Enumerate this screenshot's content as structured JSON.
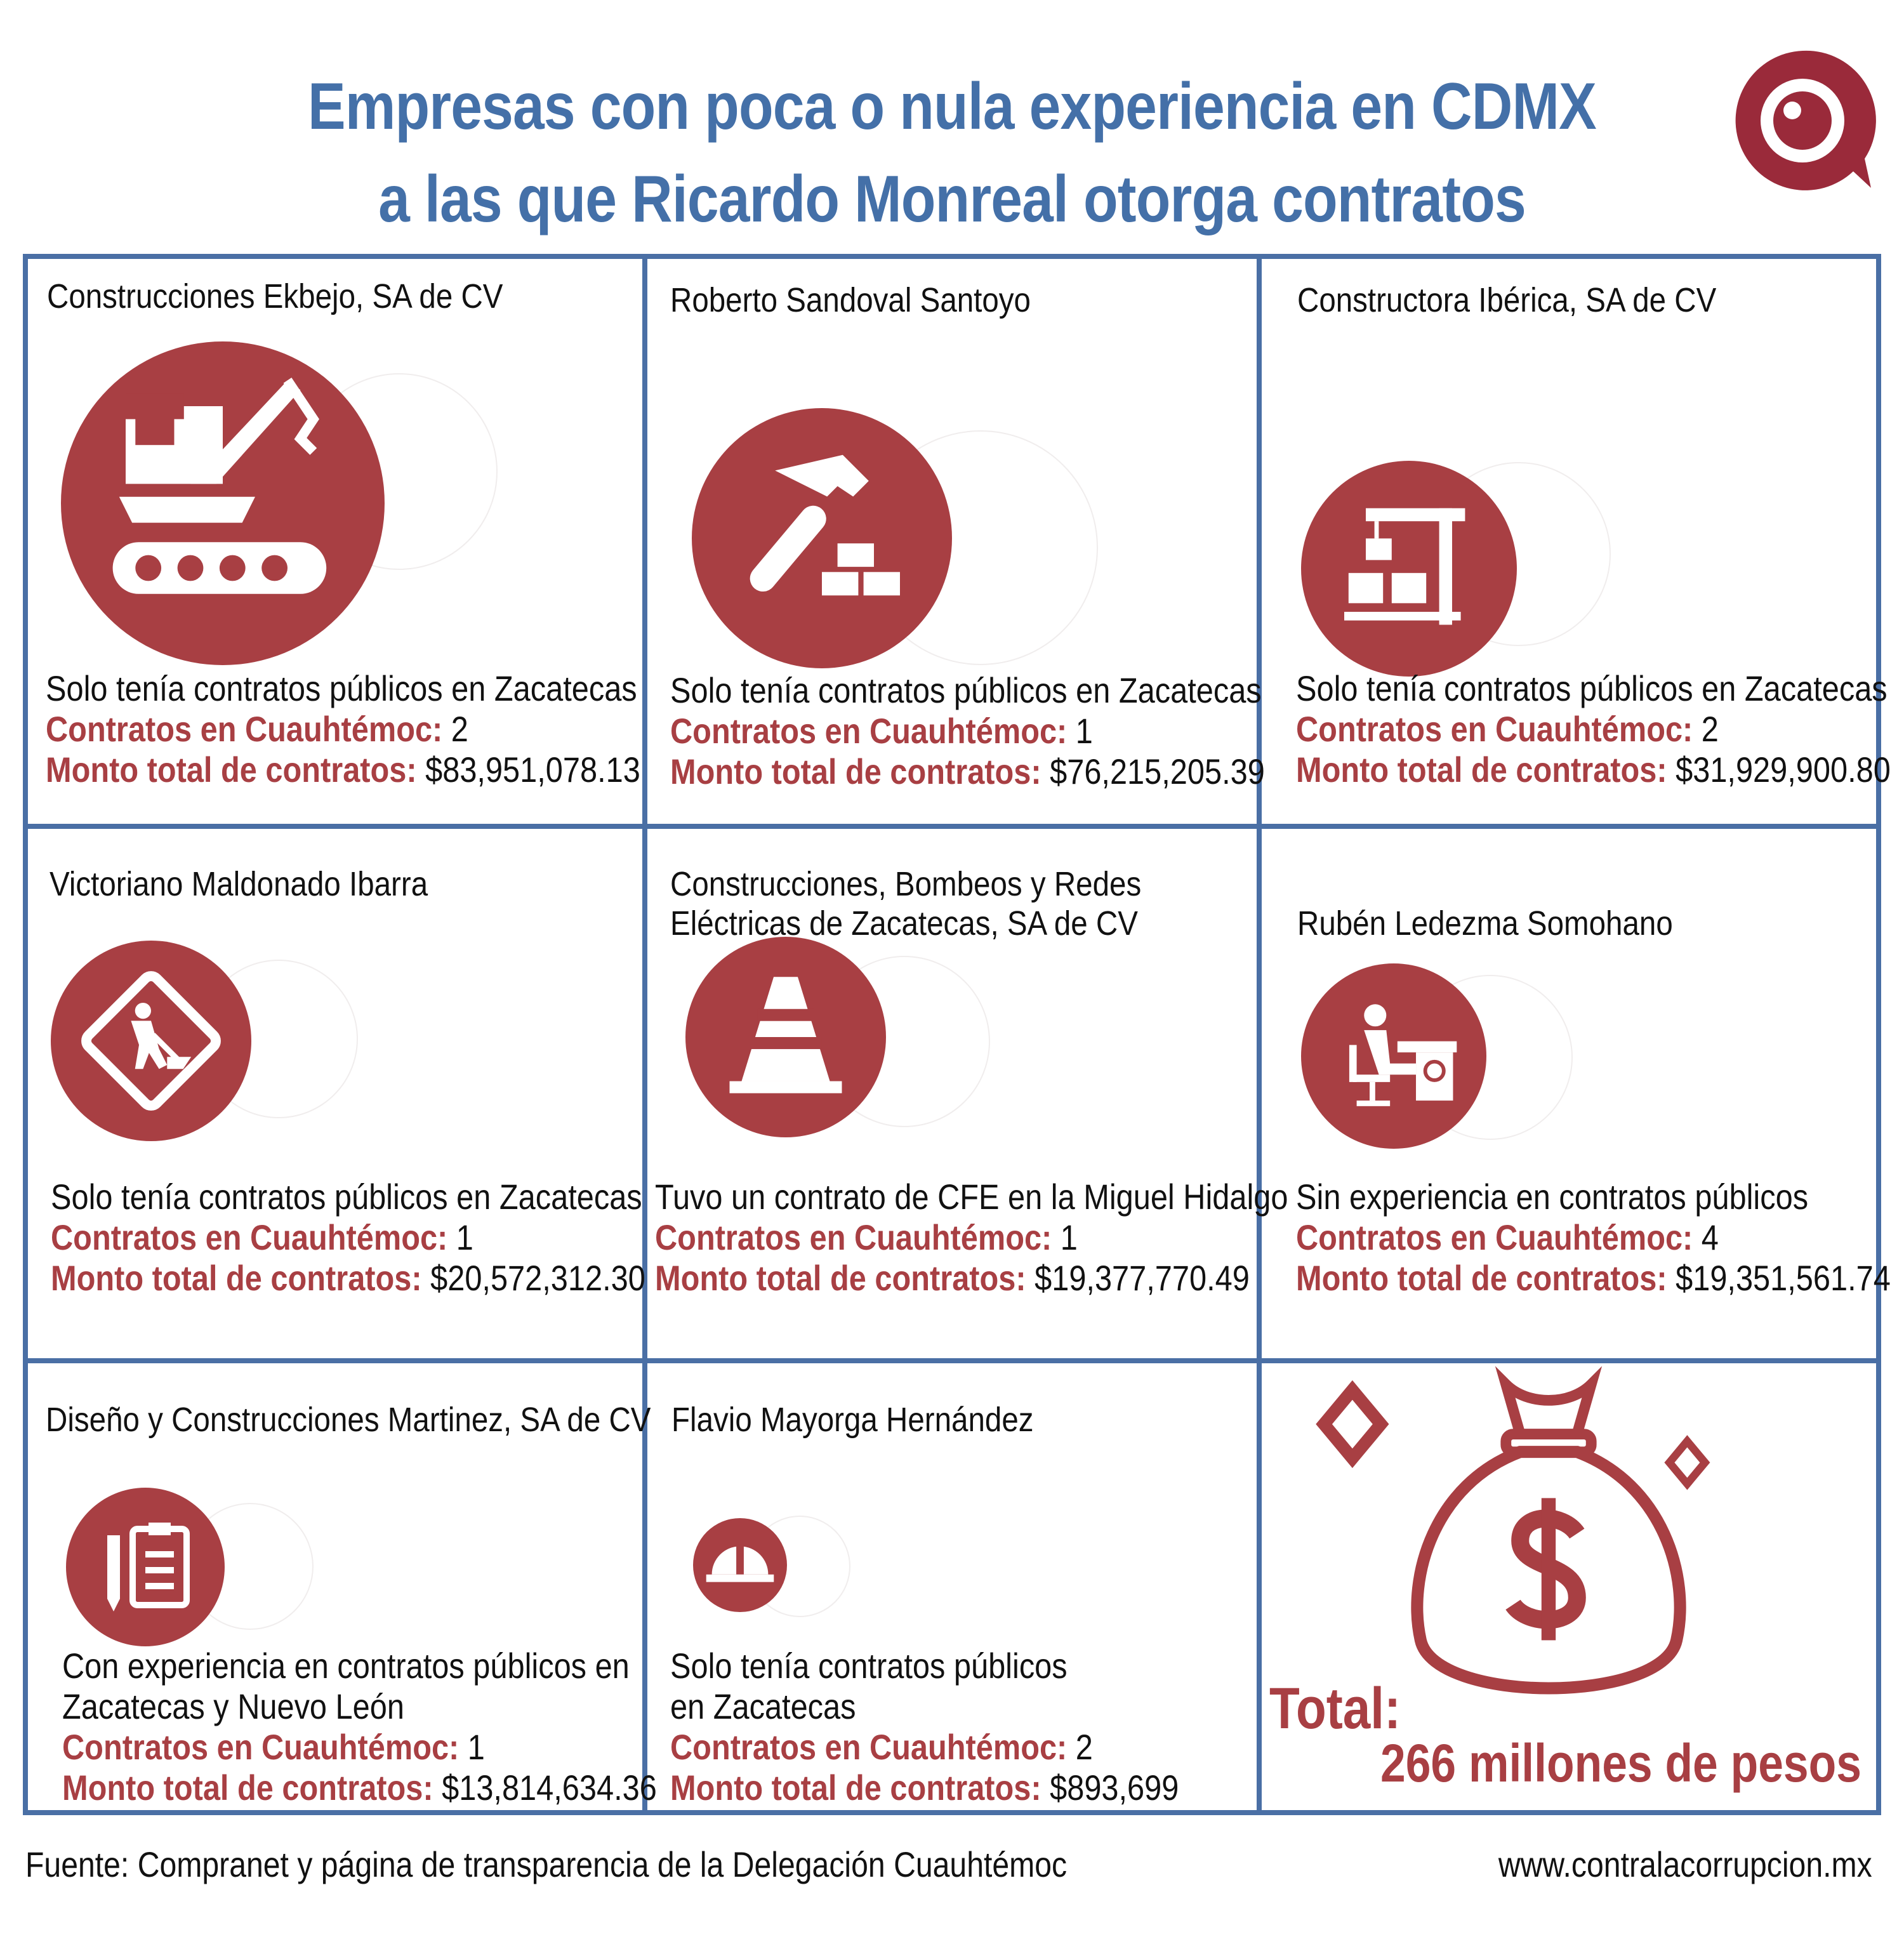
{
  "title": {
    "line1": "Empresas con poca o nula experiencia en CDMX",
    "line2": "a las que Ricardo Monreal otorga contratos"
  },
  "colors": {
    "accent": "#a83f43",
    "title": "#4470a8",
    "border": "#4a6fa5"
  },
  "labels": {
    "contratos": "Contratos en Cuauhtémoc:",
    "monto": "Monto total de contratos:"
  },
  "cards": [
    {
      "name": "Construcciones Ekbejo, SA de CV",
      "icon": "crane-excavator-icon",
      "experience": [
        "Solo tenía contratos públicos en Zacatecas"
      ],
      "contratos": "2",
      "monto": "$83,951,078.13"
    },
    {
      "name": "Roberto Sandoval Santoyo",
      "icon": "hammer-bricks-icon",
      "experience": [
        "Solo tenía contratos públicos en Zacatecas"
      ],
      "contratos": "1",
      "monto": "$76,215,205.39"
    },
    {
      "name": "Constructora Ibérica, SA de CV",
      "icon": "crane-blocks-icon",
      "experience": [
        "Solo tenía contratos públicos en Zacatecas"
      ],
      "contratos": "2",
      "monto": "$31,929,900.80"
    },
    {
      "name": "Victoriano Maldonado Ibarra",
      "icon": "road-work-sign-icon",
      "experience": [
        "Solo tenía contratos públicos en Zacatecas"
      ],
      "contratos": "1",
      "monto": "$20,572,312.30"
    },
    {
      "name": [
        "Construcciones, Bombeos y Redes",
        "Eléctricas de Zacatecas, SA de CV"
      ],
      "icon": "traffic-cone-icon",
      "experience": [
        "Tuvo un contrato de CFE en la Miguel Hidalgo"
      ],
      "contratos": "1",
      "monto": "$19,377,770.49"
    },
    {
      "name": "Rubén Ledezma Somohano",
      "icon": "person-desk-icon",
      "experience": [
        "Sin experiencia en contratos públicos"
      ],
      "contratos": "4",
      "monto": "$19,351,561.74"
    },
    {
      "name": "Diseño y Construcciones Martinez, SA de CV",
      "icon": "pencil-clipboard-icon",
      "experience": [
        "Con experiencia en contratos públicos  en",
        "Zacatecas y Nuevo León"
      ],
      "contratos": "1",
      "monto": "$13,814,634.36"
    },
    {
      "name": "Flavio Mayorga Hernández",
      "icon": "hard-hat-icon",
      "experience": [
        "Solo tenía contratos públicos",
        "en Zacatecas"
      ],
      "contratos": "2",
      "monto": "$893,699"
    }
  ],
  "total": {
    "label": "Total:",
    "value": "266 millones de pesos",
    "icon": "money-bag-icon"
  },
  "footer": {
    "source": "Fuente: Compranet y página de transparencia de la Delegación Cuauhtémoc",
    "website": "www.contralacorrupcion.mx"
  }
}
